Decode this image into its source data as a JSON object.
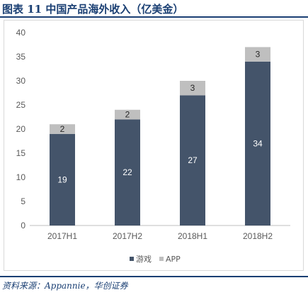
{
  "header": {
    "title": "图表 11   中国产品海外收入（亿美金）"
  },
  "chart_data": {
    "type": "bar",
    "stacked": true,
    "categories": [
      "2017H1",
      "2017H2",
      "2018H1",
      "2018H2"
    ],
    "series": [
      {
        "name": "游戏",
        "values": [
          19,
          22,
          27,
          34
        ],
        "color": "#44546a",
        "label_color": "#ffffff"
      },
      {
        "name": "APP",
        "values": [
          2,
          2,
          3,
          3
        ],
        "color": "#bfbfbf",
        "label_color": "#262626"
      }
    ],
    "y_ticks": [
      "0",
      "5",
      "10",
      "15",
      "20",
      "25",
      "30",
      "35",
      "40"
    ],
    "ylim": [
      0,
      40
    ],
    "grid": false,
    "legend_position": "bottom"
  },
  "footer": {
    "source": "资料来源：Appannie，华创证券"
  }
}
